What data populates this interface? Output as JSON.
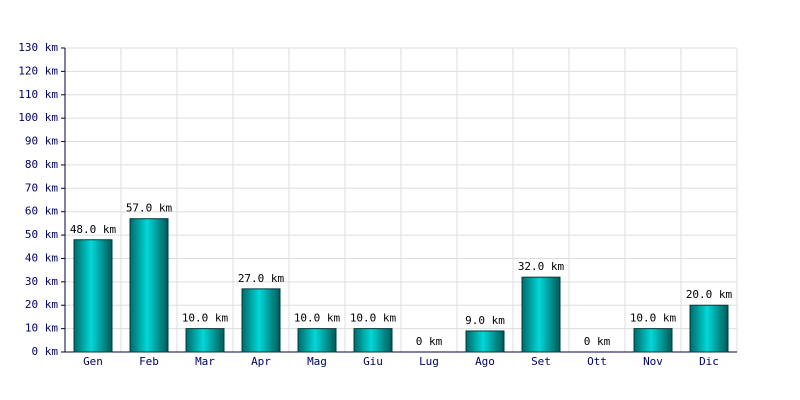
{
  "chart_data": {
    "type": "bar",
    "categories": [
      "Gen",
      "Feb",
      "Mar",
      "Apr",
      "Mag",
      "Giu",
      "Lug",
      "Ago",
      "Set",
      "Ott",
      "Nov",
      "Dic"
    ],
    "values": [
      48,
      57,
      10,
      27,
      10,
      10,
      0,
      9,
      32,
      0,
      10,
      20
    ],
    "value_labels": [
      "48.0 km",
      "57.0 km",
      "10.0 km",
      "27.0 km",
      "10.0 km",
      "10.0 km",
      "0 km",
      "9.0 km",
      "32.0 km",
      "0 km",
      "10.0 km",
      "20.0 km"
    ],
    "color": "#00d8d8",
    "ylim": [
      0,
      130
    ],
    "yticks": [
      {
        "value": 0,
        "label": "0 km"
      },
      {
        "value": 10,
        "label": "10 km"
      },
      {
        "value": 20,
        "label": "20 km"
      },
      {
        "value": 30,
        "label": "30 km"
      },
      {
        "value": 40,
        "label": "40 km"
      },
      {
        "value": 50,
        "label": "50 km"
      },
      {
        "value": 60,
        "label": "60 km"
      },
      {
        "value": 70,
        "label": "70 km"
      },
      {
        "value": 80,
        "label": "80 km"
      },
      {
        "value": 90,
        "label": "90 km"
      },
      {
        "value": 100,
        "label": "100 km"
      },
      {
        "value": 110,
        "label": "110 km"
      },
      {
        "value": 120,
        "label": "120 km"
      },
      {
        "value": 130,
        "label": "130 km"
      }
    ],
    "grid": true
  }
}
